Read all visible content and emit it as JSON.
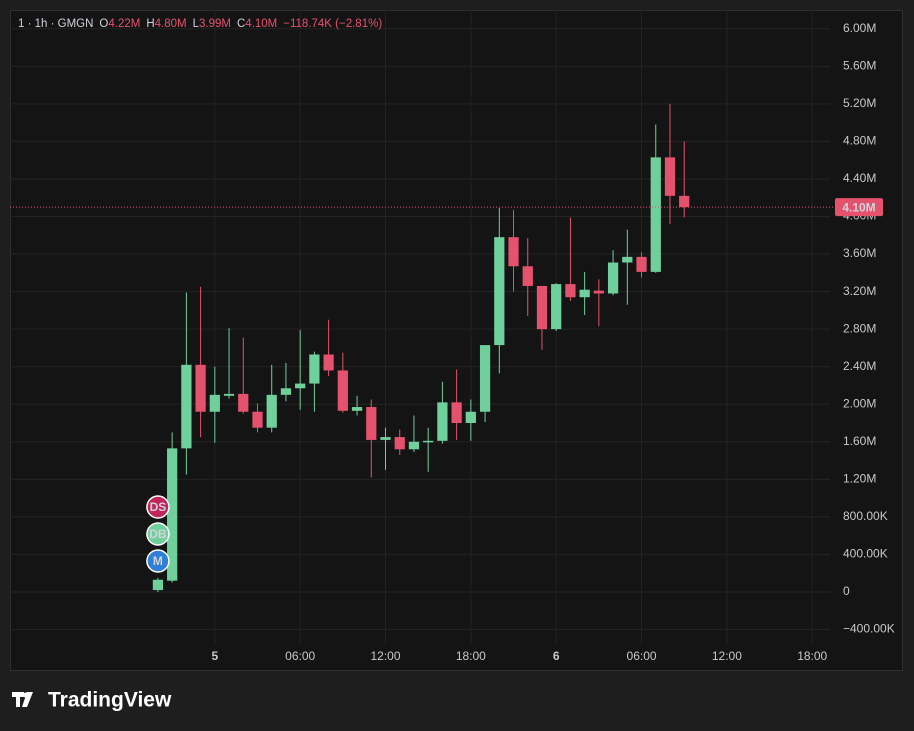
{
  "chart_data": {
    "type": "candlestick",
    "header": {
      "symbol": "1 · 1h · GMGN",
      "fields": [
        {
          "key": "O",
          "value": "4.22M"
        },
        {
          "key": "H",
          "value": "4.80M"
        },
        {
          "key": "L",
          "value": "3.99M"
        },
        {
          "key": "C",
          "value": "4.10M"
        }
      ],
      "change": "−118.74K (−2.81%)"
    },
    "x": [
      -4,
      -3,
      -2,
      -1,
      0,
      1,
      2,
      3,
      4,
      5,
      6,
      7,
      8,
      9,
      10,
      11,
      12,
      13,
      14,
      15,
      16,
      17,
      18,
      19,
      20,
      21,
      22,
      23,
      24,
      25,
      26,
      27,
      28,
      29,
      30,
      31,
      32,
      33
    ],
    "open": [
      20000,
      120000,
      1530000,
      2420000,
      1920000,
      2090000,
      2110000,
      1920000,
      1750000,
      2100000,
      2170000,
      2220000,
      2530000,
      2360000,
      1930000,
      1970000,
      1620000,
      1650000,
      1520000,
      1600000,
      1610000,
      2020000,
      1800000,
      1920000,
      2630000,
      3780000,
      3470000,
      3260000,
      2800000,
      3280000,
      3140000,
      3210000,
      3180000,
      3510000,
      3570000,
      3410000,
      4630000,
      4220000
    ],
    "high": [
      150000,
      1700000,
      3190000,
      3250000,
      2400000,
      2810000,
      2710000,
      2010000,
      2420000,
      2440000,
      2790000,
      2560000,
      2900000,
      2550000,
      2090000,
      2050000,
      1750000,
      1730000,
      1880000,
      1750000,
      2240000,
      2370000,
      2050000,
      2630000,
      4090000,
      4070000,
      3770000,
      3260000,
      3290000,
      3990000,
      3410000,
      3330000,
      3640000,
      3860000,
      3620000,
      4980000,
      5200000,
      4800000
    ],
    "low": [
      0,
      100000,
      1250000,
      1650000,
      1590000,
      2060000,
      1900000,
      1700000,
      1700000,
      2030000,
      1940000,
      1920000,
      2300000,
      1910000,
      1880000,
      1220000,
      1300000,
      1460000,
      1490000,
      1280000,
      1580000,
      1620000,
      1610000,
      1810000,
      2330000,
      3200000,
      2940000,
      2580000,
      2780000,
      3100000,
      2950000,
      2830000,
      3160000,
      3060000,
      3350000,
      3400000,
      3920000,
      3990000
    ],
    "close": [
      130000,
      1530000,
      2420000,
      1920000,
      2100000,
      2110000,
      1920000,
      1750000,
      2100000,
      2170000,
      2220000,
      2530000,
      2360000,
      1930000,
      1970000,
      1620000,
      1650000,
      1520000,
      1600000,
      1610000,
      2020000,
      1800000,
      1920000,
      2630000,
      3780000,
      3470000,
      3260000,
      2800000,
      3280000,
      3140000,
      3220000,
      3180000,
      3510000,
      3570000,
      3410000,
      4630000,
      4220000,
      4100000
    ],
    "up_color": "#6fd09c",
    "down_color": "#e5526d",
    "xlim": [
      -14.4,
      43.25
    ],
    "xticks": [
      {
        "value": 0,
        "label": "5"
      },
      {
        "value": 6,
        "label": "06:00"
      },
      {
        "value": 12,
        "label": "12:00"
      },
      {
        "value": 18,
        "label": "18:00"
      },
      {
        "value": 24,
        "label": "6"
      },
      {
        "value": 30,
        "label": "06:00"
      },
      {
        "value": 36,
        "label": "12:00"
      },
      {
        "value": 42,
        "label": "18:00"
      }
    ],
    "ylim": [
      -565000,
      6200000
    ],
    "yticks": [
      {
        "value": 6000000,
        "label": "6.00M"
      },
      {
        "value": 5600000,
        "label": "5.60M"
      },
      {
        "value": 5200000,
        "label": "5.20M"
      },
      {
        "value": 4800000,
        "label": "4.80M"
      },
      {
        "value": 4400000,
        "label": "4.40M"
      },
      {
        "value": 4000000,
        "label": "4.00M"
      },
      {
        "value": 3600000,
        "label": "3.60M"
      },
      {
        "value": 3200000,
        "label": "3.20M"
      },
      {
        "value": 2800000,
        "label": "2.80M"
      },
      {
        "value": 2400000,
        "label": "2.40M"
      },
      {
        "value": 2000000,
        "label": "2.00M"
      },
      {
        "value": 1600000,
        "label": "1.60M"
      },
      {
        "value": 1200000,
        "label": "1.20M"
      },
      {
        "value": 800000,
        "label": "800.00K"
      },
      {
        "value": 400000,
        "label": "400.00K"
      },
      0,
      {
        "value": -400000,
        "label": "−400.00K"
      }
    ],
    "grid": true,
    "last_price": {
      "value": 4100000,
      "label": "4.10M"
    },
    "markers": [
      {
        "label": "DS",
        "color": "#c2255c"
      },
      {
        "label": "DB",
        "color": "#6fd09c"
      },
      {
        "label": "M",
        "color": "#2f7fd8"
      }
    ],
    "branding": "TradingView"
  }
}
